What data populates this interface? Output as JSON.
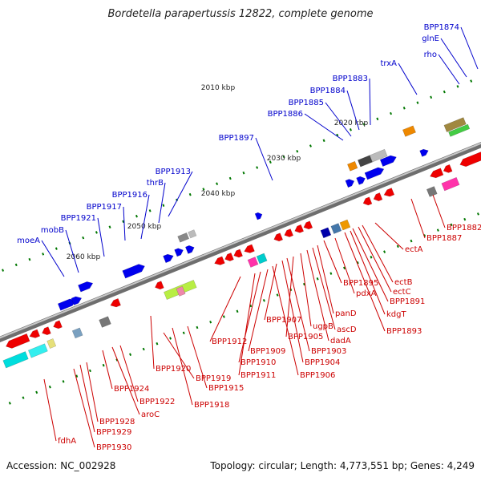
{
  "title": "Bordetella parapertussis 12822, complete genome",
  "footer": {
    "accession": "Accession: NC_002928",
    "summary": "Topology: circular; Length: 4,773,551 bp; Genes: 4,249"
  },
  "colors": {
    "backbone": "#8a8a8a",
    "label_forward": "#0000cc",
    "label_reverse": "#cc0000",
    "tick": "#007700",
    "forward_gene": "#0000ee",
    "reverse_gene": "#ee0000"
  },
  "scale_labels": [
    "2010 kbp",
    "2020 kbp",
    "2030 kbp",
    "2040 kbp",
    "2050 kbp",
    "2060 kbp"
  ],
  "forward_gene_labels": [
    "BPP1874",
    "glnE",
    "rho",
    "trxA",
    "BPP1883",
    "BPP1884",
    "BPP1885",
    "BPP1886",
    "BPP1897",
    "BPP1913",
    "thrB",
    "BPP1916",
    "BPP1917",
    "BPP1921",
    "mobB",
    "moeA"
  ],
  "reverse_gene_labels": [
    "BPP1882",
    "BPP1887",
    "ectA",
    "ectB",
    "ectC",
    "BPP1891",
    "kdgT",
    "BPP1893",
    "BPP1895",
    "pdxA",
    "panD",
    "ascD",
    "dadA",
    "ugpB",
    "BPP1905",
    "BPP1903",
    "BPP1904",
    "BPP1907",
    "BPP1906",
    "BPP1909",
    "BPP1910",
    "BPP1911",
    "BPP1912",
    "BPP1915",
    "BPP1918",
    "BPP1919",
    "BPP1920",
    "BPP1922",
    "aroC",
    "BPP1924",
    "BPP1928",
    "BPP1929",
    "BPP1930",
    "fdhA"
  ]
}
